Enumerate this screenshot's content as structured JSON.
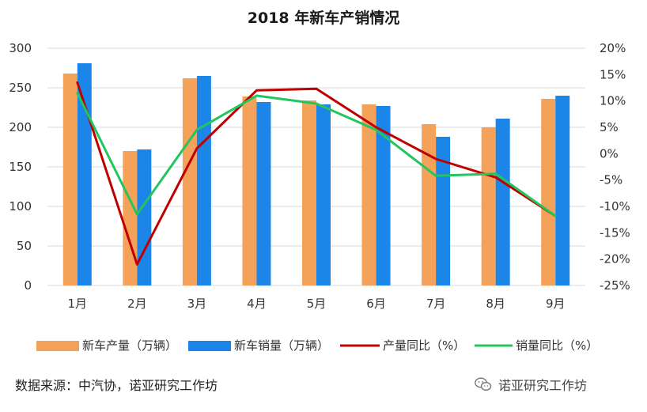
{
  "title": "2018 年新车产销情况",
  "source": "数据来源：中汽协，诺亚研究工作坊",
  "watermark": "诺亚研究工作坊",
  "watermark_icon": "wechat-icon",
  "colors": {
    "production": "#F4A259",
    "sales": "#1C86E8",
    "production_yoy": "#C00000",
    "sales_yoy": "#22C55E",
    "grid": "#D9D9D9"
  },
  "chart_data": {
    "type": "bar",
    "title": "2018 年新车产销情况",
    "categories": [
      "1月",
      "2月",
      "3月",
      "4月",
      "5月",
      "6月",
      "7月",
      "8月",
      "9月"
    ],
    "left_axis": {
      "ylim": [
        0,
        300
      ],
      "ticks": [
        0,
        50,
        100,
        150,
        200,
        250,
        300
      ],
      "tick_labels": [
        "0",
        "50",
        "100",
        "150",
        "200",
        "250",
        "300"
      ]
    },
    "right_axis": {
      "ylim": [
        -25,
        20
      ],
      "ticks": [
        -25,
        -20,
        -15,
        -10,
        -5,
        0,
        5,
        10,
        15,
        20
      ],
      "tick_labels": [
        "-25%",
        "-20%",
        "-15%",
        "-10%",
        "-5%",
        "0%",
        "5%",
        "10%",
        "15%",
        "20%"
      ]
    },
    "grid": true,
    "legend_position": "bottom",
    "series": [
      {
        "name": "新车产量（万辆）",
        "type": "bar",
        "axis": "left",
        "values": [
          268,
          170,
          262,
          239,
          234,
          229,
          204,
          200,
          236
        ]
      },
      {
        "name": "新车销量（万辆）",
        "type": "bar",
        "axis": "left",
        "values": [
          281,
          172,
          265,
          232,
          229,
          227,
          188,
          211,
          240
        ]
      },
      {
        "name": "产量同比（%）",
        "type": "line",
        "axis": "right",
        "values": [
          13.5,
          -21,
          1,
          12,
          12.3,
          5,
          -1,
          -4.5,
          -11.8
        ]
      },
      {
        "name": "销量同比（%）",
        "type": "line",
        "axis": "right",
        "values": [
          11.5,
          -11.5,
          4.5,
          11,
          9.5,
          4.5,
          -4.2,
          -3.8,
          -11.8
        ]
      }
    ]
  }
}
